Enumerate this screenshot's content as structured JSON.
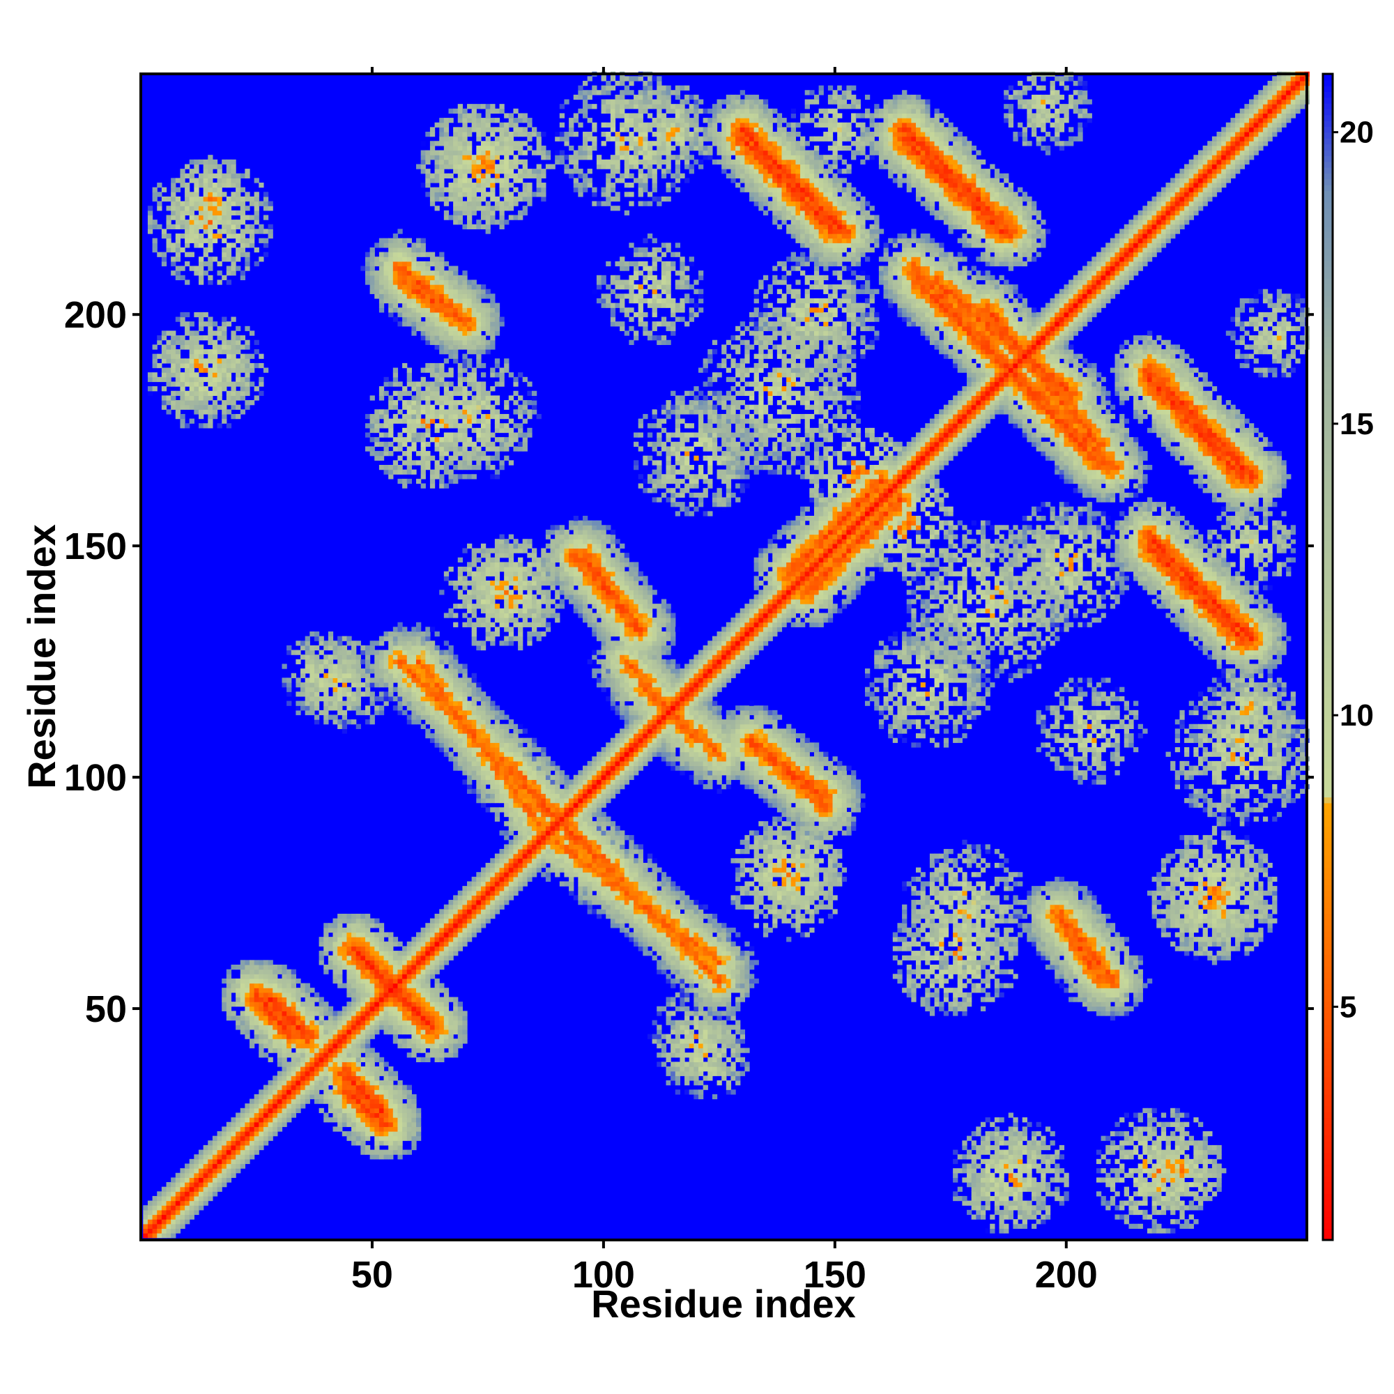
{
  "chart_data": {
    "type": "heatmap",
    "title": "",
    "xlabel": "Residue index",
    "ylabel": "Residue index",
    "n_residues": 252,
    "xlim": [
      1,
      252
    ],
    "ylim": [
      1,
      252
    ],
    "x_ticks": [
      50,
      100,
      150,
      200
    ],
    "y_ticks": [
      50,
      100,
      150,
      200
    ],
    "colorbar": {
      "range": [
        1,
        21
      ],
      "ticks": [
        5,
        10,
        15,
        20
      ],
      "stops": [
        {
          "value": 1,
          "color": "#ff0000"
        },
        {
          "value": 4,
          "color": "#ff4500"
        },
        {
          "value": 8.5,
          "color": "#ffa500"
        },
        {
          "value": 8.6,
          "color": "#c8d99a"
        },
        {
          "value": 16,
          "color": "#9fb3a0"
        },
        {
          "value": 19,
          "color": "#6f8fb6"
        },
        {
          "value": 21,
          "color": "#0000ff"
        }
      ]
    },
    "background_value": 21,
    "diagonal_value": 1,
    "contact_features": [
      {
        "kind": "antiparallel",
        "from": [
          28,
          52
        ],
        "to": [
          36,
          44
        ],
        "min": 5
      },
      {
        "kind": "antiparallel",
        "from": [
          46,
          63
        ],
        "to": [
          62,
          47
        ],
        "min": 5
      },
      {
        "kind": "antiparallel",
        "from": [
          45,
          32
        ],
        "to": [
          53,
          25
        ],
        "min": 5
      },
      {
        "kind": "antiparallel",
        "from": [
          80,
          102
        ],
        "to": [
          90,
          91
        ],
        "min": 6
      },
      {
        "kind": "antiparallel",
        "from": [
          90,
          86
        ],
        "to": [
          125,
          60
        ],
        "min": 7
      },
      {
        "kind": "antiparallel",
        "from": [
          56,
          125
        ],
        "to": [
          82,
          100
        ],
        "min": 7
      },
      {
        "kind": "antiparallel",
        "from": [
          94,
          148
        ],
        "to": [
          108,
          132
        ],
        "min": 6
      },
      {
        "kind": "antiparallel",
        "from": [
          108,
          120
        ],
        "to": [
          125,
          105
        ],
        "min": 7
      },
      {
        "kind": "antiparallel",
        "from": [
          132,
          107
        ],
        "to": [
          148,
          96
        ],
        "min": 6
      },
      {
        "kind": "antiparallel",
        "from": [
          56,
          210
        ],
        "to": [
          70,
          199
        ],
        "min": 6
      },
      {
        "kind": "antiparallel",
        "from": [
          130,
          238
        ],
        "to": [
          150,
          218
        ],
        "min": 5
      },
      {
        "kind": "antiparallel",
        "from": [
          165,
          240
        ],
        "to": [
          188,
          218
        ],
        "min": 5
      },
      {
        "kind": "antiparallel",
        "from": [
          168,
          207
        ],
        "to": [
          210,
          167
        ],
        "min": 6
      },
      {
        "kind": "antiparallel",
        "from": [
          183,
          201
        ],
        "to": [
          207,
          172
        ],
        "min": 6
      },
      {
        "kind": "antiparallel",
        "from": [
          218,
          186
        ],
        "to": [
          238,
          165
        ],
        "min": 5
      },
      {
        "kind": "antiparallel",
        "from": [
          218,
          152
        ],
        "to": [
          240,
          130
        ],
        "min": 5
      },
      {
        "kind": "antiparallel",
        "from": [
          198,
          70
        ],
        "to": [
          207,
          57
        ],
        "min": 6
      },
      {
        "kind": "parallel",
        "from": [
          140,
          144
        ],
        "to": [
          160,
          164
        ],
        "min": 6
      },
      {
        "kind": "blob",
        "center": [
          15,
          220
        ],
        "radius": 14,
        "min": 8
      },
      {
        "kind": "blob",
        "center": [
          14,
          188
        ],
        "radius": 13,
        "min": 8
      },
      {
        "kind": "blob",
        "center": [
          72,
          178
        ],
        "radius": 14,
        "min": 9
      },
      {
        "kind": "blob",
        "center": [
          74,
          232
        ],
        "radius": 14,
        "min": 8
      },
      {
        "kind": "blob",
        "center": [
          105,
          238
        ],
        "radius": 16,
        "min": 9
      },
      {
        "kind": "blob",
        "center": [
          78,
          140
        ],
        "radius": 13,
        "min": 8
      },
      {
        "kind": "blob",
        "center": [
          40,
          122
        ],
        "radius": 10,
        "min": 9
      },
      {
        "kind": "blob",
        "center": [
          120,
          44
        ],
        "radius": 10,
        "min": 9
      },
      {
        "kind": "blob",
        "center": [
          140,
          80
        ],
        "radius": 12,
        "min": 8
      },
      {
        "kind": "blob",
        "center": [
          225,
          15
        ],
        "radius": 9,
        "min": 8
      },
      {
        "kind": "blob",
        "center": [
          188,
          15
        ],
        "radius": 10,
        "min": 9
      },
      {
        "kind": "blob",
        "center": [
          232,
          75
        ],
        "radius": 14,
        "min": 8
      },
      {
        "kind": "blob",
        "center": [
          176,
          62
        ],
        "radius": 14,
        "min": 8
      },
      {
        "kind": "blob",
        "center": [
          183,
          138
        ],
        "radius": 18,
        "min": 9
      },
      {
        "kind": "blob",
        "center": [
          120,
          170
        ],
        "radius": 14,
        "min": 9
      },
      {
        "kind": "blob",
        "center": [
          146,
          200
        ],
        "radius": 14,
        "min": 9
      },
      {
        "kind": "blob",
        "center": [
          196,
          245
        ],
        "radius": 10,
        "min": 9
      },
      {
        "kind": "blob",
        "center": [
          150,
          240
        ],
        "radius": 10,
        "min": 9
      },
      {
        "kind": "blob",
        "center": [
          205,
          110
        ],
        "radius": 12,
        "min": 9
      },
      {
        "kind": "blob",
        "center": [
          240,
          115
        ],
        "radius": 10,
        "min": 9
      },
      {
        "kind": "blob",
        "center": [
          155,
          165
        ],
        "radius": 12,
        "min": 7
      }
    ]
  }
}
